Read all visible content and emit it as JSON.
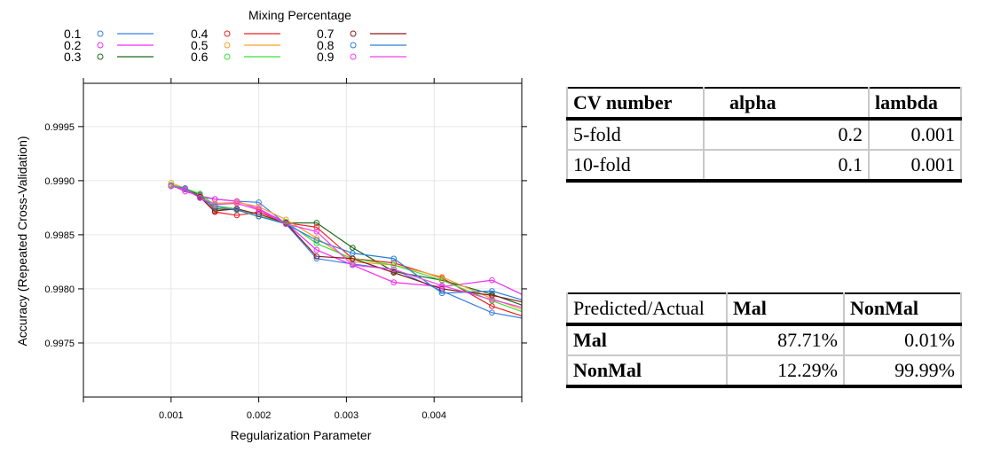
{
  "chart_data": {
    "type": "line",
    "xlabel": "Regularization Parameter",
    "ylabel": "Accuracy (Repeated Cross-Validation)",
    "xlim": [
      0.0,
      0.005
    ],
    "ylim": [
      0.997,
      0.9999
    ],
    "xticks": [
      0.001,
      0.002,
      0.003,
      0.004
    ],
    "xtick_labels": [
      "0.001",
      "0.002",
      "0.003",
      "0.004"
    ],
    "yticks": [
      0.9975,
      0.998,
      0.9985,
      0.999,
      0.9995
    ],
    "ytick_labels": [
      "0.9975",
      "0.9980",
      "0.9985",
      "0.9990",
      "0.9995"
    ],
    "grid": true,
    "legend": {
      "title": "Mixing Percentage",
      "placement": "top-left",
      "columns": 3
    },
    "x": [
      0.001,
      0.00116,
      0.00133,
      0.0015,
      0.00175,
      0.002,
      0.00231,
      0.00266,
      0.00307,
      0.00354,
      0.00409,
      0.00466,
      0.005
    ],
    "series": [
      {
        "name": "0.1",
        "color": "#3a7ee6",
        "values": [
          0.99895,
          0.99892,
          0.99885,
          0.99883,
          0.99881,
          0.9988,
          0.9986,
          0.99828,
          0.99823,
          0.99818,
          0.99798,
          0.99778,
          0.99773
        ]
      },
      {
        "name": "0.2",
        "color": "#f02ef0",
        "values": [
          0.99896,
          0.9989,
          0.99886,
          0.99883,
          0.99881,
          0.99874,
          0.99861,
          0.99836,
          0.99822,
          0.99806,
          0.99802,
          0.99808,
          0.99795
        ]
      },
      {
        "name": "0.3",
        "color": "#1a6a1a",
        "values": [
          0.99895,
          0.99892,
          0.99887,
          0.99874,
          0.99873,
          0.99867,
          0.99861,
          0.99861,
          0.99838,
          0.99816,
          0.99808,
          0.99795,
          0.99785
        ]
      },
      {
        "name": "0.4",
        "color": "#f02020",
        "values": [
          0.99896,
          0.99893,
          0.99885,
          0.99871,
          0.99868,
          0.99871,
          0.99861,
          0.99857,
          0.99828,
          0.99824,
          0.9981,
          0.99784,
          0.99775
        ]
      },
      {
        "name": "0.5",
        "color": "#f5a030",
        "values": [
          0.99898,
          0.99893,
          0.99884,
          0.99879,
          0.9988,
          0.99876,
          0.99864,
          0.99847,
          0.99825,
          0.99822,
          0.99811,
          0.99791,
          0.99781
        ]
      },
      {
        "name": "0.6",
        "color": "#3ae03a",
        "values": [
          0.99896,
          0.99893,
          0.99888,
          0.99877,
          0.99874,
          0.99867,
          0.99862,
          0.99842,
          0.99828,
          0.99822,
          0.99808,
          0.99789,
          0.99779
        ]
      },
      {
        "name": "0.7",
        "color": "#8a1a1a",
        "values": [
          0.99895,
          0.99892,
          0.99885,
          0.99872,
          0.99874,
          0.99869,
          0.99861,
          0.9983,
          0.99828,
          0.99815,
          0.998,
          0.99794,
          0.99788
        ]
      },
      {
        "name": "0.8",
        "color": "#2a7fd6",
        "values": [
          0.99895,
          0.99893,
          0.99884,
          0.99876,
          0.99873,
          0.99867,
          0.9986,
          0.99845,
          0.99833,
          0.99828,
          0.99796,
          0.99798,
          0.9979
        ]
      },
      {
        "name": "0.9",
        "color": "#f040f0",
        "values": [
          0.99895,
          0.99892,
          0.99884,
          0.99878,
          0.99879,
          0.99873,
          0.9986,
          0.99853,
          0.99822,
          0.99818,
          0.99803,
          0.9979,
          0.99783
        ]
      }
    ]
  },
  "cv_table": {
    "headers": [
      "CV number",
      "alpha",
      "lambda"
    ],
    "rows": [
      {
        "label": "5-fold",
        "alpha": "0.2",
        "lambda": "0.001"
      },
      {
        "label": "10-fold",
        "alpha": "0.1",
        "lambda": "0.001"
      }
    ]
  },
  "confusion_table": {
    "headers": [
      "Predicted/Actual",
      "Mal",
      "NonMal"
    ],
    "rows": [
      {
        "label": "Mal",
        "mal": "87.71%",
        "nonmal": "0.01%"
      },
      {
        "label": "NonMal",
        "mal": "12.29%",
        "nonmal": "99.99%"
      }
    ]
  }
}
